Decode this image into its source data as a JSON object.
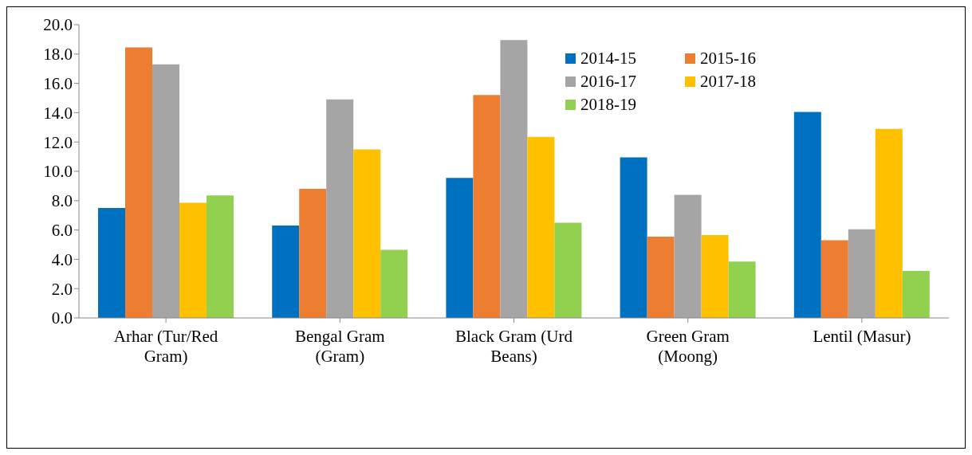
{
  "chart_data": {
    "type": "bar",
    "categories": [
      "Arhar (Tur/Red Gram)",
      "Bengal Gram (Gram)",
      "Black Gram (Urd Beans)",
      "Green Gram (Moong)",
      "Lentil (Masur)"
    ],
    "series": [
      {
        "name": "2014-15",
        "color": "#0070c0",
        "values": [
          7.5,
          6.3,
          9.55,
          10.95,
          14.05
        ]
      },
      {
        "name": "2015-16",
        "color": "#ed7d31",
        "values": [
          18.45,
          8.8,
          15.2,
          5.55,
          5.3
        ]
      },
      {
        "name": "2016-17",
        "color": "#a5a5a5",
        "values": [
          17.3,
          14.9,
          18.95,
          8.4,
          6.05
        ]
      },
      {
        "name": "2017-18",
        "color": "#ffc000",
        "values": [
          7.85,
          11.5,
          12.35,
          5.65,
          12.9
        ]
      },
      {
        "name": "2018-19",
        "color": "#92d050",
        "values": [
          8.35,
          4.65,
          6.5,
          3.85,
          3.2
        ]
      }
    ],
    "ylim": [
      0,
      20
    ],
    "yticks": [
      {
        "value": 0,
        "label": "0.0"
      },
      {
        "value": 2,
        "label": "2.0"
      },
      {
        "value": 4,
        "label": "4.0"
      },
      {
        "value": 6,
        "label": "6.0"
      },
      {
        "value": 8,
        "label": "8.0"
      },
      {
        "value": 10,
        "label": "10.0"
      },
      {
        "value": 12,
        "label": "12.0"
      },
      {
        "value": 14,
        "label": "14.0"
      },
      {
        "value": 16,
        "label": "16.0"
      },
      {
        "value": 18,
        "label": "18.0"
      },
      {
        "value": 20,
        "label": "20.0"
      }
    ],
    "grid": false,
    "legend": "top right"
  }
}
